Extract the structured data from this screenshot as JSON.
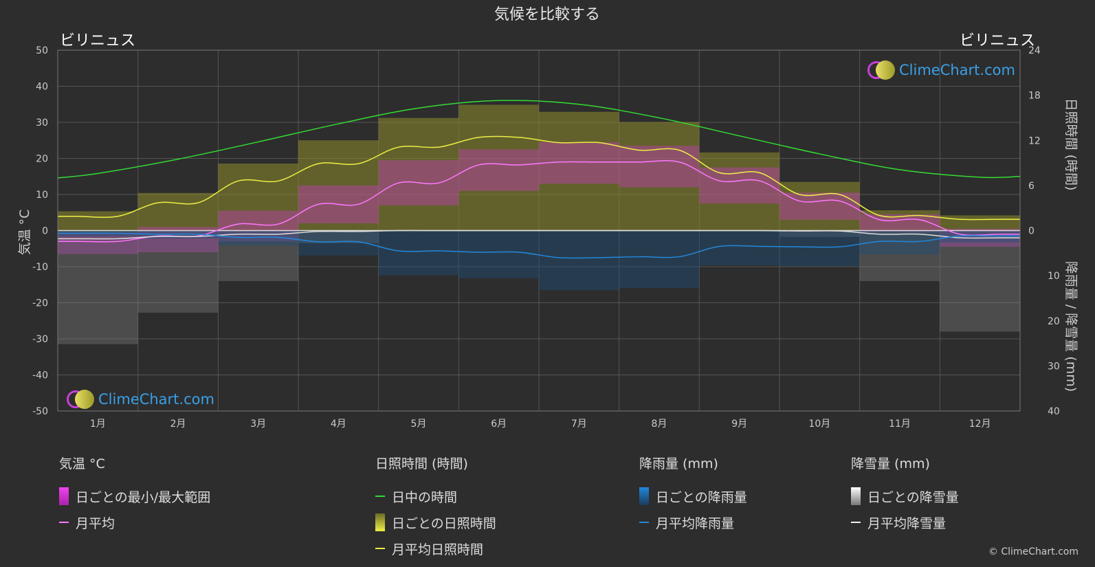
{
  "title": "気候を比較する",
  "city_left": "ビリニュス",
  "city_right": "ビリニュス",
  "copyright": "© ClimeChart.com",
  "logo_text": "ClimeChart.com",
  "chart_data": {
    "type": "area",
    "months": [
      "1月",
      "2月",
      "3月",
      "4月",
      "5月",
      "6月",
      "7月",
      "8月",
      "9月",
      "10月",
      "11月",
      "12月"
    ],
    "y_left": {
      "label": "気温 °C",
      "range": [
        -50,
        50
      ],
      "ticks": [
        50,
        40,
        30,
        20,
        10,
        0,
        -10,
        -20,
        -30,
        -40,
        -50
      ]
    },
    "y_right_top": {
      "label": "日照時間 (時間)",
      "range": [
        0,
        24
      ],
      "ticks": [
        24,
        18,
        12,
        6,
        0
      ]
    },
    "y_right_bottom": {
      "label": "降雨量 / 降雪量 (mm)",
      "range": [
        0,
        40
      ],
      "ticks": [
        0,
        10,
        20,
        30,
        40
      ]
    },
    "series": {
      "daylight_hours": [
        7.6,
        9.5,
        11.8,
        14.2,
        16.3,
        17.3,
        16.8,
        15.0,
        12.6,
        10.2,
        8.1,
        7.1
      ],
      "sunshine_hours_monthly": [
        1.9,
        3.7,
        6.6,
        8.9,
        11.1,
        12.4,
        11.7,
        10.7,
        7.7,
        4.8,
        2.0,
        1.5
      ],
      "temp_mean_monthly": [
        -3.0,
        -1.5,
        1.8,
        7.3,
        13.2,
        18.2,
        19.0,
        19.0,
        13.8,
        8.2,
        3.0,
        -1.0
      ],
      "temp_max_monthly": [
        -0.5,
        1.0,
        5.5,
        12.5,
        19.5,
        22.5,
        24.5,
        23.5,
        17.5,
        10.5,
        4.5,
        0.5
      ],
      "temp_min_monthly": [
        -6.5,
        -6.0,
        -3.0,
        2.0,
        7.0,
        11.0,
        13.0,
        12.0,
        7.5,
        3.0,
        -0.5,
        -4.5
      ],
      "rain_monthly_mm": [
        0.6,
        0.8,
        1.5,
        2.5,
        4.5,
        4.8,
        6.0,
        5.8,
        3.5,
        3.6,
        2.4,
        1.2
      ],
      "snow_monthly_mm": [
        1.8,
        1.3,
        0.8,
        0.2,
        0.0,
        0.0,
        0.0,
        0.0,
        0.0,
        0.1,
        0.8,
        1.6
      ]
    },
    "grid": true
  },
  "legend": {
    "temperature": {
      "heading": "気温 °C",
      "items": [
        "日ごとの最小/最大範囲",
        "月平均"
      ]
    },
    "sunshine": {
      "heading": "日照時間 (時間)",
      "items": [
        "日中の時間",
        "日ごとの日照時間",
        "月平均日照時間"
      ]
    },
    "rain": {
      "heading": "降雨量 (mm)",
      "items": [
        "日ごとの降雨量",
        "月平均降雨量"
      ]
    },
    "snow": {
      "heading": "降雪量 (mm)",
      "items": [
        "日ごとの降雪量",
        "月平均降雪量"
      ]
    }
  },
  "colors": {
    "daylight": "#33dd33",
    "sunshine": "#eeee44",
    "temp_range": "#dd33dd",
    "temp_mean": "#ff77ff",
    "rain": "#2288dd",
    "snow": "#dddddd"
  }
}
